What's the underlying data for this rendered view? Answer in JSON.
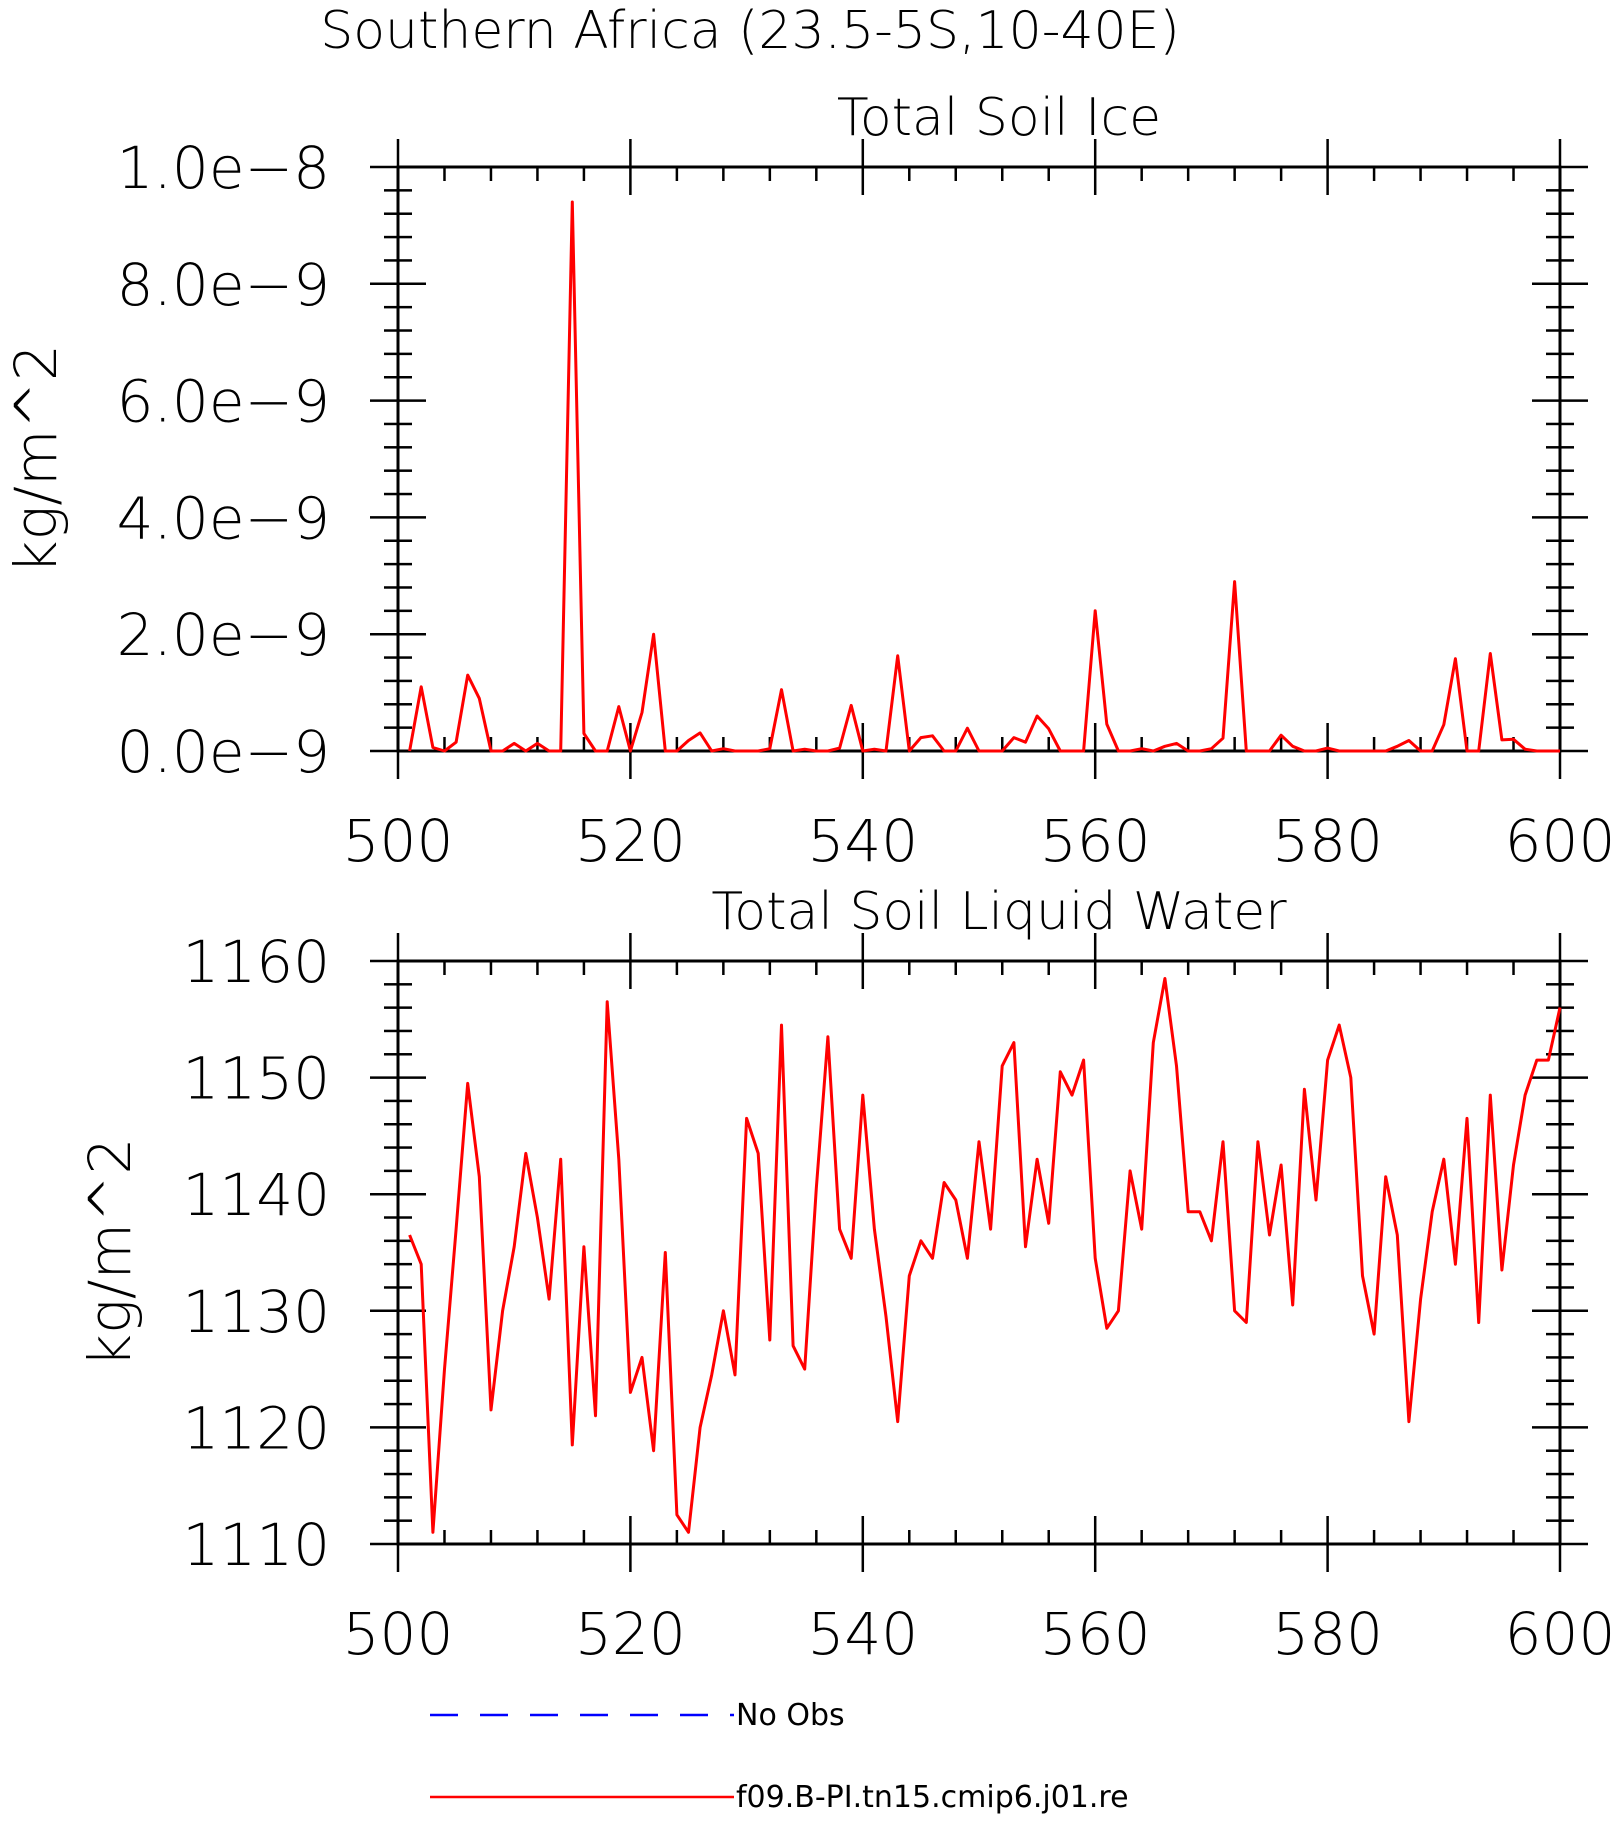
{
  "figure_title": "Southern Africa (23.5-5S,10-40E)",
  "legend": [
    {
      "label": "No Obs",
      "color": "#0000ff",
      "dash": true
    },
    {
      "label": "f09.B-PI.tn15.cmip6.j01.re",
      "color": "#ff0000",
      "dash": false
    }
  ],
  "chart_data": [
    {
      "type": "line",
      "title": "Total Soil Ice",
      "xlabel": "",
      "ylabel": "kg/m^2",
      "xlim": [
        500,
        600
      ],
      "ylim": [
        0,
        1e-08
      ],
      "x_ticks": [
        500,
        520,
        540,
        560,
        580,
        600
      ],
      "y_ticks": [
        0,
        2e-09,
        4e-09,
        6e-09,
        8e-09,
        1e-08
      ],
      "y_tick_labels": [
        "0.0e−9",
        "2.0e−9",
        "4.0e−9",
        "6.0e−9",
        "8.0e−9",
        "1.0e−8"
      ],
      "x_tick_labels": [
        "500",
        "520",
        "540",
        "560",
        "580",
        "600"
      ],
      "grid": false,
      "series": [
        {
          "name": "f09.B-PI.tn15.cmip6.j01.re",
          "color": "#ff0000",
          "x": [
            501,
            502,
            503,
            504,
            505,
            506,
            507,
            508,
            509,
            510,
            511,
            512,
            513,
            514,
            515,
            516,
            517,
            518,
            519,
            520,
            521,
            522,
            523,
            524,
            525,
            526,
            527,
            528,
            529,
            530,
            531,
            532,
            533,
            534,
            535,
            536,
            537,
            538,
            539,
            540,
            541,
            542,
            543,
            544,
            545,
            546,
            547,
            548,
            549,
            550,
            551,
            552,
            553,
            554,
            555,
            556,
            557,
            558,
            559,
            560,
            561,
            562,
            563,
            564,
            565,
            566,
            567,
            568,
            569,
            570,
            571,
            572,
            573,
            574,
            575,
            576,
            577,
            578,
            579,
            580,
            581,
            582,
            583,
            584,
            585,
            586,
            587,
            588,
            589,
            590,
            591,
            592,
            593,
            594,
            595,
            596,
            597,
            598,
            599,
            600
          ],
          "values": [
            0,
            1.1e-09,
            6e-11,
            0,
            1.5e-10,
            1.3e-09,
            9e-10,
            0,
            0,
            1.3e-10,
            0,
            1.3e-10,
            0,
            0,
            9.4e-09,
            3e-10,
            0,
            0,
            7.6e-10,
            0,
            6.6e-10,
            2e-09,
            0,
            0,
            1.8e-10,
            3.1e-10,
            0,
            4e-11,
            0,
            0,
            0,
            4e-11,
            1.05e-09,
            0,
            3e-11,
            0,
            0,
            5e-11,
            7.8e-10,
            0,
            3e-11,
            0,
            1.63e-09,
            0,
            2.3e-10,
            2.6e-10,
            0,
            0,
            3.9e-10,
            0,
            0,
            0,
            2.3e-10,
            1.5e-10,
            6e-10,
            3.8e-10,
            0,
            0,
            0,
            2.4e-09,
            4.6e-10,
            0,
            0,
            4e-11,
            0,
            8e-11,
            1.3e-10,
            0,
            0,
            4e-11,
            2.2e-10,
            2.9e-09,
            0,
            0,
            0,
            2.7e-10,
            8e-11,
            0,
            0,
            5e-11,
            0,
            0,
            0,
            0,
            0,
            8e-11,
            1.8e-10,
            0,
            0,
            4.5e-10,
            1.58e-09,
            0,
            0,
            1.67e-09,
            1.9e-10,
            2e-10,
            3e-11,
            0,
            0,
            0
          ]
        }
      ]
    },
    {
      "type": "line",
      "title": "Total Soil Liquid Water",
      "xlabel": "",
      "ylabel": "kg/m^2",
      "xlim": [
        500,
        600
      ],
      "ylim": [
        1110,
        1160
      ],
      "x_ticks": [
        500,
        520,
        540,
        560,
        580,
        600
      ],
      "y_ticks": [
        1110,
        1120,
        1130,
        1140,
        1150,
        1160
      ],
      "y_tick_labels": [
        "1110",
        "1120",
        "1130",
        "1140",
        "1150",
        "1160"
      ],
      "x_tick_labels": [
        "500",
        "520",
        "540",
        "560",
        "580",
        "600"
      ],
      "grid": false,
      "series": [
        {
          "name": "f09.B-PI.tn15.cmip6.j01.re",
          "color": "#ff0000",
          "x": [
            501,
            502,
            503,
            504,
            505,
            506,
            507,
            508,
            509,
            510,
            511,
            512,
            513,
            514,
            515,
            516,
            517,
            518,
            519,
            520,
            521,
            522,
            523,
            524,
            525,
            526,
            527,
            528,
            529,
            530,
            531,
            532,
            533,
            534,
            535,
            536,
            537,
            538,
            539,
            540,
            541,
            542,
            543,
            544,
            545,
            546,
            547,
            548,
            549,
            550,
            551,
            552,
            553,
            554,
            555,
            556,
            557,
            558,
            559,
            560,
            561,
            562,
            563,
            564,
            565,
            566,
            567,
            568,
            569,
            570,
            571,
            572,
            573,
            574,
            575,
            576,
            577,
            578,
            579,
            580,
            581,
            582,
            583,
            584,
            585,
            586,
            587,
            588,
            589,
            590,
            591,
            592,
            593,
            594,
            595,
            596,
            597,
            598,
            599,
            600
          ],
          "values": [
            1136.5,
            1134,
            1111,
            1125,
            1137,
            1149.5,
            1141.5,
            1121.5,
            1130,
            1135.5,
            1143.5,
            1138,
            1131,
            1143,
            1118.5,
            1135.5,
            1121,
            1156.5,
            1143,
            1123,
            1126,
            1118,
            1135,
            1112.5,
            1111,
            1120,
            1124.5,
            1130,
            1124.5,
            1146.5,
            1143.5,
            1127.5,
            1154.5,
            1127,
            1125,
            1140.5,
            1153.5,
            1137,
            1134.5,
            1148.5,
            1137,
            1129.5,
            1120.5,
            1133,
            1136,
            1134.5,
            1141,
            1139.5,
            1134.5,
            1144.5,
            1137,
            1151,
            1153,
            1135.5,
            1143,
            1137.5,
            1150.5,
            1148.5,
            1151.5,
            1134.5,
            1128.5,
            1130,
            1142,
            1137,
            1153,
            1158.5,
            1151,
            1138.5,
            1138.5,
            1136,
            1144.5,
            1130,
            1129,
            1144.5,
            1136.5,
            1142.5,
            1130.5,
            1149,
            1139.5,
            1151.5,
            1154.5,
            1150,
            1133,
            1128,
            1141.5,
            1136.5,
            1120.5,
            1131,
            1138.5,
            1143,
            1134,
            1146.5,
            1129,
            1148.5,
            1133.5,
            1142.5,
            1148.5,
            1151.5,
            1151.5,
            1156
          ]
        }
      ]
    }
  ]
}
